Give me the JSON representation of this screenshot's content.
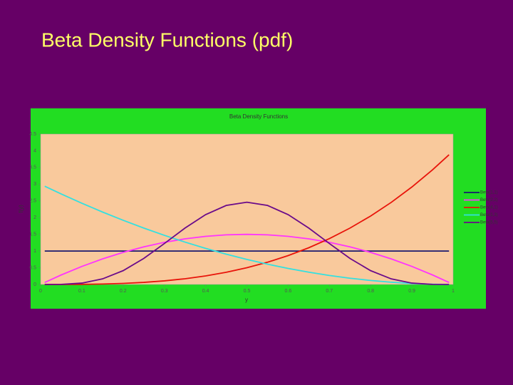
{
  "slide_title": "Beta Density Functions (pdf)",
  "chart_data": {
    "type": "line",
    "title": "Beta Density Functions",
    "xlabel": "y",
    "ylabel": "f(y)",
    "x": [
      0.01,
      0.05,
      0.1,
      0.15,
      0.2,
      0.25,
      0.3,
      0.35,
      0.4,
      0.45,
      0.5,
      0.55,
      0.6,
      0.65,
      0.7,
      0.75,
      0.8,
      0.85,
      0.9,
      0.95,
      0.99
    ],
    "series": [
      {
        "name": "Beta(1,1)",
        "color": "#1a1a6e",
        "values": [
          1,
          1,
          1,
          1,
          1,
          1,
          1,
          1,
          1,
          1,
          1,
          1,
          1,
          1,
          1,
          1,
          1,
          1,
          1,
          1,
          1
        ]
      },
      {
        "name": "Beta(2,2)",
        "color": "#ff33ff",
        "values": [
          0.06,
          0.285,
          0.54,
          0.765,
          0.96,
          1.125,
          1.26,
          1.365,
          1.44,
          1.485,
          1.5,
          1.485,
          1.44,
          1.365,
          1.26,
          1.125,
          0.96,
          0.765,
          0.54,
          0.285,
          0.06
        ]
      },
      {
        "name": "Beta(4,1)",
        "color": "#e8140a",
        "values": [
          0,
          0.0005,
          0.004,
          0.0135,
          0.032,
          0.0625,
          0.108,
          0.1715,
          0.256,
          0.3645,
          0.5,
          0.6655,
          0.864,
          1.0985,
          1.372,
          1.6875,
          2.048,
          2.4565,
          2.916,
          3.4295,
          3.881
        ]
      },
      {
        "name": "Beta(1,3)",
        "color": "#33e0e0",
        "values": [
          2.94,
          2.7075,
          2.43,
          2.1675,
          1.92,
          1.6875,
          1.47,
          1.2675,
          1.08,
          0.9075,
          0.75,
          0.6075,
          0.48,
          0.3675,
          0.27,
          0.1875,
          0.12,
          0.0675,
          0.03,
          0.0075,
          0.0003
        ]
      },
      {
        "name": "Beta(5,5)",
        "color": "#6a0a8a",
        "values": [
          0,
          0.003,
          0.041,
          0.167,
          0.413,
          0.779,
          1.225,
          1.688,
          2.09,
          2.364,
          2.461,
          2.364,
          2.09,
          1.688,
          1.225,
          0.779,
          0.413,
          0.167,
          0.041,
          0.003,
          0
        ]
      }
    ],
    "xlim": [
      0,
      1
    ],
    "xticks": [
      0,
      0.1,
      0.2,
      0.3,
      0.4,
      0.5,
      0.6,
      0.7,
      0.8,
      0.9,
      1
    ],
    "ylim": [
      0,
      4.5
    ],
    "yticks": [
      0,
      0.5,
      1,
      1.5,
      2,
      2.5,
      3,
      3.5,
      4,
      4.5
    ],
    "grid": false,
    "legend": "right"
  }
}
